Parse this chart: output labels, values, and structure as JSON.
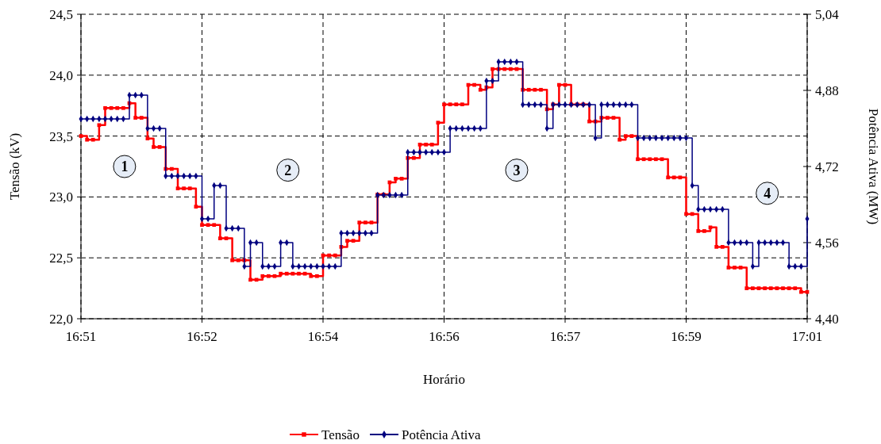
{
  "chart_data": {
    "type": "step",
    "xlabel": "Horário",
    "ylabel": "Tensão (kV)",
    "y2label": "Potência Ativa (MW)",
    "categories": [
      "16:51",
      null,
      null,
      null,
      null,
      null,
      null,
      null,
      null,
      null,
      null,
      null,
      null,
      null,
      null,
      null,
      null,
      null,
      null,
      null,
      "16:52",
      null,
      null,
      null,
      null,
      null,
      null,
      null,
      null,
      null,
      null,
      null,
      null,
      null,
      null,
      null,
      null,
      null,
      null,
      null,
      "16:54",
      null,
      null,
      null,
      null,
      null,
      null,
      null,
      null,
      null,
      null,
      null,
      null,
      null,
      null,
      null,
      null,
      null,
      null,
      null,
      "16:56",
      null,
      null,
      null,
      null,
      null,
      null,
      null,
      null,
      null,
      null,
      null,
      null,
      null,
      null,
      null,
      null,
      null,
      null,
      null,
      "16:57",
      null,
      null,
      null,
      null,
      null,
      null,
      null,
      null,
      null,
      null,
      null,
      null,
      null,
      null,
      null,
      null,
      null,
      null,
      null,
      "16:59",
      null,
      null,
      null,
      null,
      null,
      null,
      null,
      null,
      null,
      null,
      null,
      null,
      null,
      null,
      null,
      null,
      null,
      null,
      null,
      "17:01"
    ],
    "ylim": [
      22,
      24.5
    ],
    "yticks": [
      {
        "value": 22,
        "label": "22,0"
      },
      {
        "value": 22.5,
        "label": "22,5"
      },
      {
        "value": 23,
        "label": "23,0"
      },
      {
        "value": 23.5,
        "label": "23,5"
      },
      {
        "value": 24,
        "label": "24,0"
      },
      {
        "value": 24.5,
        "label": "24,5"
      }
    ],
    "y2lim": [
      4.4,
      5.04
    ],
    "y2ticks": [
      {
        "value": 4.4,
        "label": "4,40"
      },
      {
        "value": 4.56,
        "label": "4,56"
      },
      {
        "value": 4.72,
        "label": "4,72"
      },
      {
        "value": 4.88,
        "label": "4,88"
      },
      {
        "value": 5.04,
        "label": "5,04"
      }
    ],
    "grid": true,
    "legend": "bottom",
    "series": [
      {
        "name": "Tensão",
        "color": "#ff0000",
        "marker": "square",
        "values": [
          23.5,
          23.47,
          23.47,
          23.59,
          23.73,
          23.73,
          23.73,
          23.73,
          23.77,
          23.65,
          23.65,
          23.48,
          23.41,
          23.41,
          23.23,
          23.23,
          23.07,
          23.07,
          23.07,
          22.92,
          22.77,
          22.77,
          22.77,
          22.66,
          22.66,
          22.48,
          22.48,
          22.48,
          22.32,
          22.32,
          22.35,
          22.35,
          22.35,
          22.37,
          22.37,
          22.37,
          22.37,
          22.37,
          22.35,
          22.35,
          22.52,
          22.52,
          22.52,
          22.59,
          22.64,
          22.64,
          22.79,
          22.79,
          22.79,
          23.02,
          23.02,
          23.12,
          23.15,
          23.15,
          23.32,
          23.32,
          23.43,
          23.43,
          23.43,
          23.61,
          23.76,
          23.76,
          23.76,
          23.76,
          23.92,
          23.92,
          23.88,
          23.9,
          24.05,
          24.05,
          24.05,
          24.05,
          24.05,
          23.88,
          23.88,
          23.88,
          23.88,
          23.72,
          23.76,
          23.92,
          23.92,
          23.76,
          23.76,
          23.76,
          23.62,
          23.62,
          23.65,
          23.65,
          23.65,
          23.47,
          23.5,
          23.5,
          23.31,
          23.31,
          23.31,
          23.31,
          23.31,
          23.16,
          23.16,
          23.16,
          22.86,
          22.86,
          22.72,
          22.72,
          22.75,
          22.59,
          22.59,
          22.42,
          22.42,
          22.42,
          22.25,
          22.25,
          22.25,
          22.25,
          22.25,
          22.25,
          22.25,
          22.25,
          22.25,
          22.22,
          22.22
        ]
      },
      {
        "name": "Potência Ativa",
        "color": "#000080",
        "marker": "diamond",
        "axis": "y2",
        "values": [
          4.82,
          4.82,
          4.82,
          4.82,
          4.82,
          4.82,
          4.82,
          4.82,
          4.87,
          4.87,
          4.87,
          4.8,
          4.8,
          4.8,
          4.7,
          4.7,
          4.7,
          4.7,
          4.7,
          4.7,
          4.61,
          4.61,
          4.68,
          4.68,
          4.59,
          4.59,
          4.59,
          4.51,
          4.56,
          4.56,
          4.51,
          4.51,
          4.51,
          4.56,
          4.56,
          4.51,
          4.51,
          4.51,
          4.51,
          4.51,
          4.51,
          4.51,
          4.51,
          4.58,
          4.58,
          4.58,
          4.58,
          4.58,
          4.58,
          4.66,
          4.66,
          4.66,
          4.66,
          4.66,
          4.75,
          4.75,
          4.75,
          4.75,
          4.75,
          4.75,
          4.75,
          4.8,
          4.8,
          4.8,
          4.8,
          4.8,
          4.8,
          4.9,
          4.9,
          4.94,
          4.94,
          4.94,
          4.94,
          4.85,
          4.85,
          4.85,
          4.85,
          4.8,
          4.85,
          4.85,
          4.85,
          4.85,
          4.85,
          4.85,
          4.85,
          4.78,
          4.85,
          4.85,
          4.85,
          4.85,
          4.85,
          4.85,
          4.78,
          4.78,
          4.78,
          4.78,
          4.78,
          4.78,
          4.78,
          4.78,
          4.78,
          4.68,
          4.63,
          4.63,
          4.63,
          4.63,
          4.63,
          4.56,
          4.56,
          4.56,
          4.56,
          4.51,
          4.56,
          4.56,
          4.56,
          4.56,
          4.56,
          4.51,
          4.51,
          4.51,
          4.61
        ]
      }
    ],
    "annotations": [
      "1",
      "2",
      "3",
      "4"
    ]
  }
}
